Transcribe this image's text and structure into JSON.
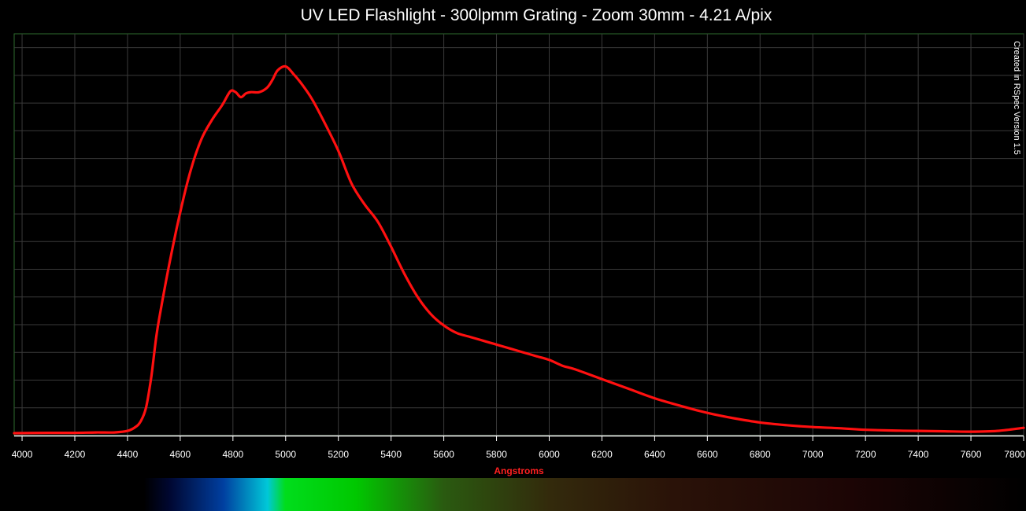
{
  "chart_data": {
    "type": "line",
    "title": "UV LED Flashlight - 300lpmm Grating - Zoom 30mm - 4.21 A/pix",
    "xlabel": "Angstroms",
    "ylabel": "",
    "credit": "Created in RSpec Version 1.5",
    "xlim": [
      3970,
      7800
    ],
    "ylim": [
      0,
      1
    ],
    "x_ticks": [
      4000,
      4200,
      4400,
      4600,
      4800,
      5000,
      5200,
      5400,
      5600,
      5800,
      6000,
      6200,
      6400,
      6600,
      6800,
      7000,
      7200,
      7400,
      7600,
      7800
    ],
    "y_gridlines": 14,
    "grid": true,
    "background_color": "#000000",
    "grid_color": "#3a3a3a",
    "border_color": "#2e6b2e",
    "series": [
      {
        "color": "#ff1010",
        "x": [
          3970,
          4100,
          4200,
          4280,
          4350,
          4400,
          4430,
          4450,
          4470,
          4490,
          4510,
          4530,
          4560,
          4600,
          4640,
          4680,
          4720,
          4760,
          4790,
          4810,
          4830,
          4850,
          4870,
          4900,
          4930,
          4950,
          4970,
          5000,
          5030,
          5060,
          5100,
          5150,
          5200,
          5250,
          5300,
          5350,
          5400,
          5450,
          5500,
          5550,
          5600,
          5650,
          5700,
          5750,
          5800,
          5850,
          5900,
          5950,
          6000,
          6050,
          6100,
          6200,
          6300,
          6400,
          6500,
          6600,
          6700,
          6800,
          6900,
          7000,
          7100,
          7200,
          7300,
          7400,
          7500,
          7600,
          7700,
          7800
        ],
        "y": [
          0.004,
          0.005,
          0.005,
          0.006,
          0.006,
          0.01,
          0.02,
          0.035,
          0.07,
          0.15,
          0.26,
          0.34,
          0.45,
          0.58,
          0.69,
          0.77,
          0.82,
          0.86,
          0.895,
          0.893,
          0.88,
          0.89,
          0.893,
          0.893,
          0.905,
          0.925,
          0.95,
          0.96,
          0.94,
          0.915,
          0.875,
          0.81,
          0.74,
          0.655,
          0.6,
          0.555,
          0.49,
          0.42,
          0.36,
          0.315,
          0.285,
          0.265,
          0.255,
          0.245,
          0.235,
          0.225,
          0.215,
          0.205,
          0.195,
          0.18,
          0.17,
          0.145,
          0.12,
          0.095,
          0.075,
          0.057,
          0.043,
          0.032,
          0.025,
          0.02,
          0.017,
          0.013,
          0.011,
          0.01,
          0.009,
          0.008,
          0.01,
          0.018
        ]
      }
    ]
  },
  "spectrum_colors": [
    "#000000",
    "#000833",
    "#003fa0",
    "#00c8d8",
    "#00dd1c",
    "#00c800",
    "#2a5a10",
    "#332a0c",
    "#2a1208",
    "#1c0505",
    "#000000"
  ]
}
